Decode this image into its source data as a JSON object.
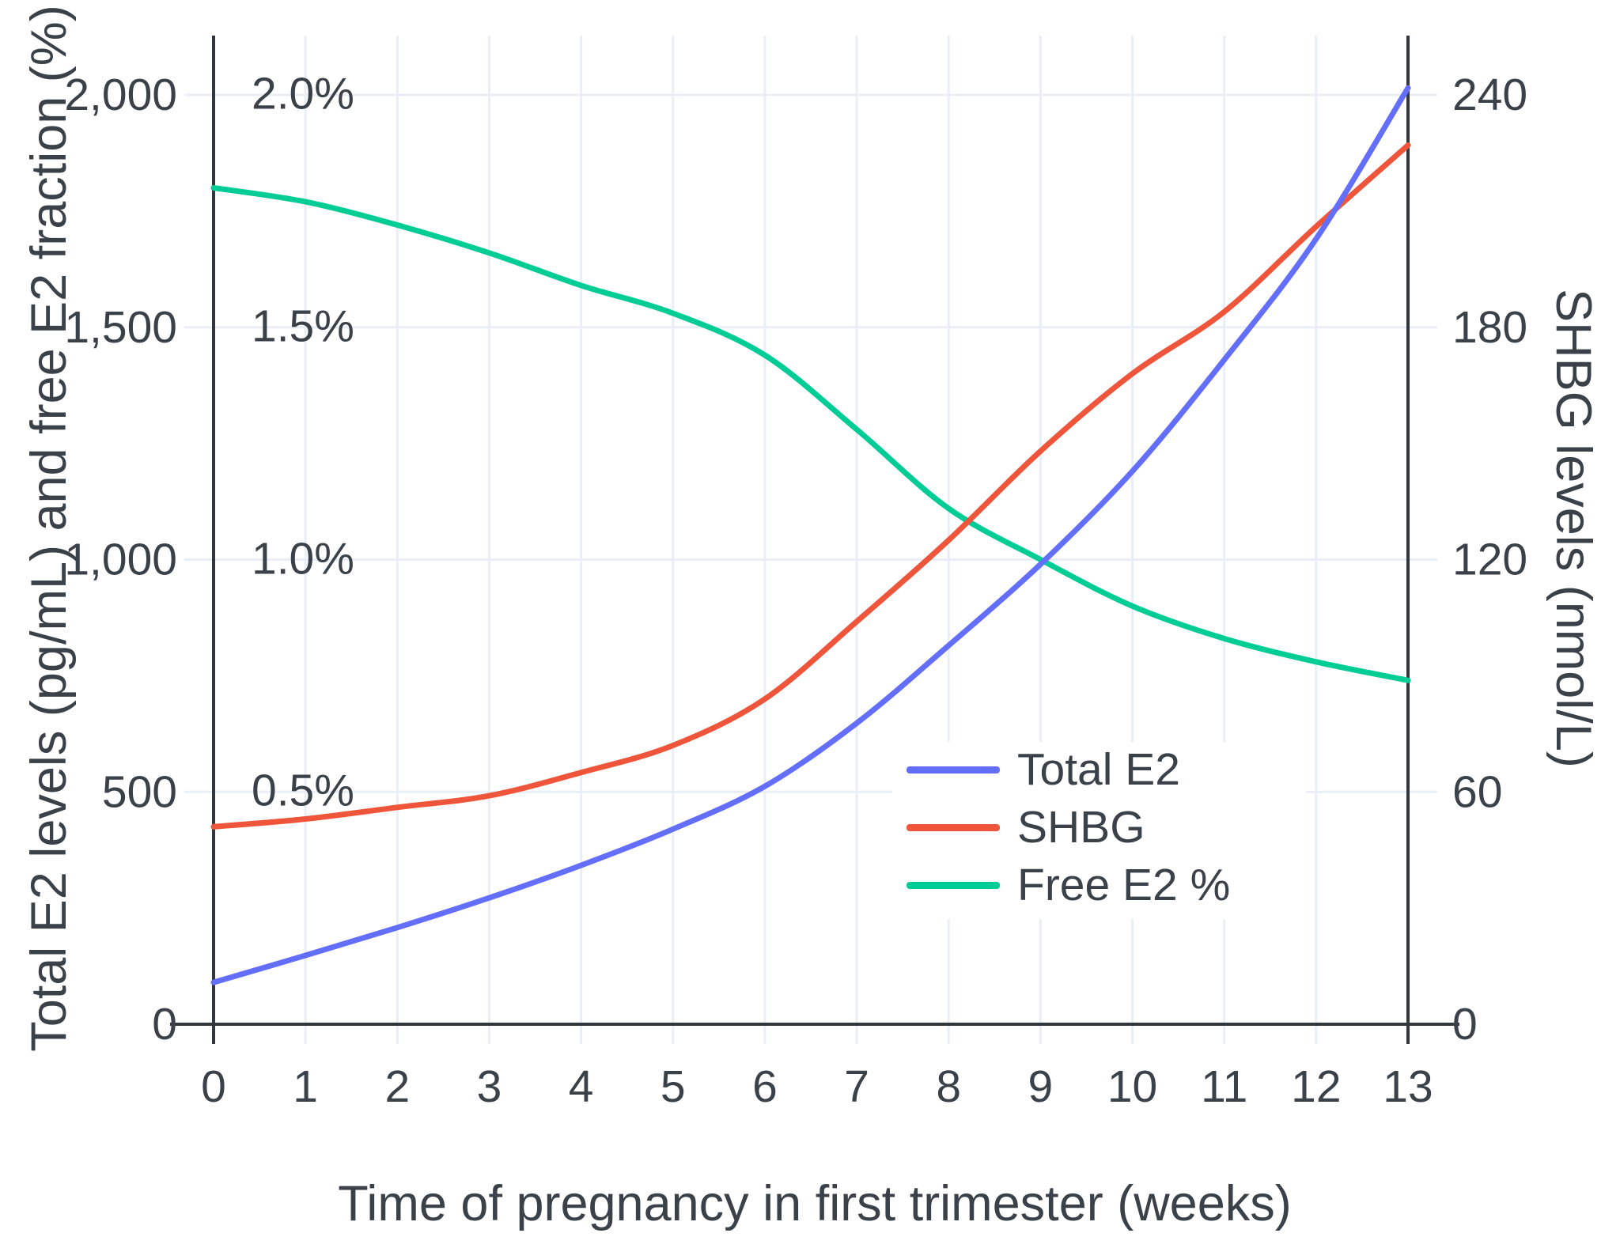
{
  "chart_data": {
    "type": "line",
    "title": "",
    "xlabel": "Time of pregnancy in first trimester (weeks)",
    "ylabel_left": "Total E2 levels (pg/mL) and free E2 fraction (%)",
    "ylabel_right": "SHBG levels (nmol/L)",
    "x": [
      0,
      1,
      2,
      3,
      4,
      5,
      6,
      7,
      8,
      9,
      10,
      11,
      12,
      13
    ],
    "x_tick_labels": [
      "0",
      "1",
      "2",
      "3",
      "4",
      "5",
      "6",
      "7",
      "8",
      "9",
      "10",
      "11",
      "12",
      "13"
    ],
    "left_axis": {
      "tick_labels": [
        "0",
        "500",
        "1,000",
        "1,500",
        "2,000"
      ],
      "tick_values": [
        0,
        500,
        1000,
        1500,
        2000
      ],
      "range": [
        0,
        2127
      ]
    },
    "right_axis": {
      "tick_labels": [
        "0",
        "60",
        "120",
        "180",
        "240"
      ],
      "tick_values": [
        0,
        60,
        120,
        180,
        240
      ],
      "range": [
        0,
        255
      ]
    },
    "grid": true,
    "legend": {
      "position": "inside-lower-right"
    },
    "series": [
      {
        "name": "Total E2",
        "color": "#636EFA",
        "axis": "left",
        "unit": "pg/mL",
        "values": [
          90,
          148,
          208,
          272,
          342,
          420,
          512,
          648,
          815,
          990,
          1190,
          1430,
          1690,
          2015
        ]
      },
      {
        "name": "SHBG",
        "color": "#EF553B",
        "axis": "right",
        "unit": "nmol/L",
        "values": [
          51,
          53,
          56,
          59,
          65,
          72,
          84,
          104,
          125,
          148,
          168,
          184,
          206,
          227
        ]
      },
      {
        "name": "Free E2 %",
        "color": "#00CC96",
        "axis": "left-as-percent",
        "unit": "%",
        "values": [
          1.8,
          1.77,
          1.72,
          1.66,
          1.59,
          1.53,
          1.44,
          1.28,
          1.11,
          1.0,
          0.9,
          0.83,
          0.78,
          0.74
        ]
      }
    ],
    "percent_annotations": [
      {
        "label": "2.0%",
        "level": 2000
      },
      {
        "label": "1.5%",
        "level": 1500
      },
      {
        "label": "1.0%",
        "level": 1000
      },
      {
        "label": "0.5%",
        "level": 500
      }
    ]
  },
  "colors": {
    "grid": "#E9EEF7",
    "axis": "#32373D",
    "text": "#3B4148",
    "background": "#FFFFFF"
  }
}
